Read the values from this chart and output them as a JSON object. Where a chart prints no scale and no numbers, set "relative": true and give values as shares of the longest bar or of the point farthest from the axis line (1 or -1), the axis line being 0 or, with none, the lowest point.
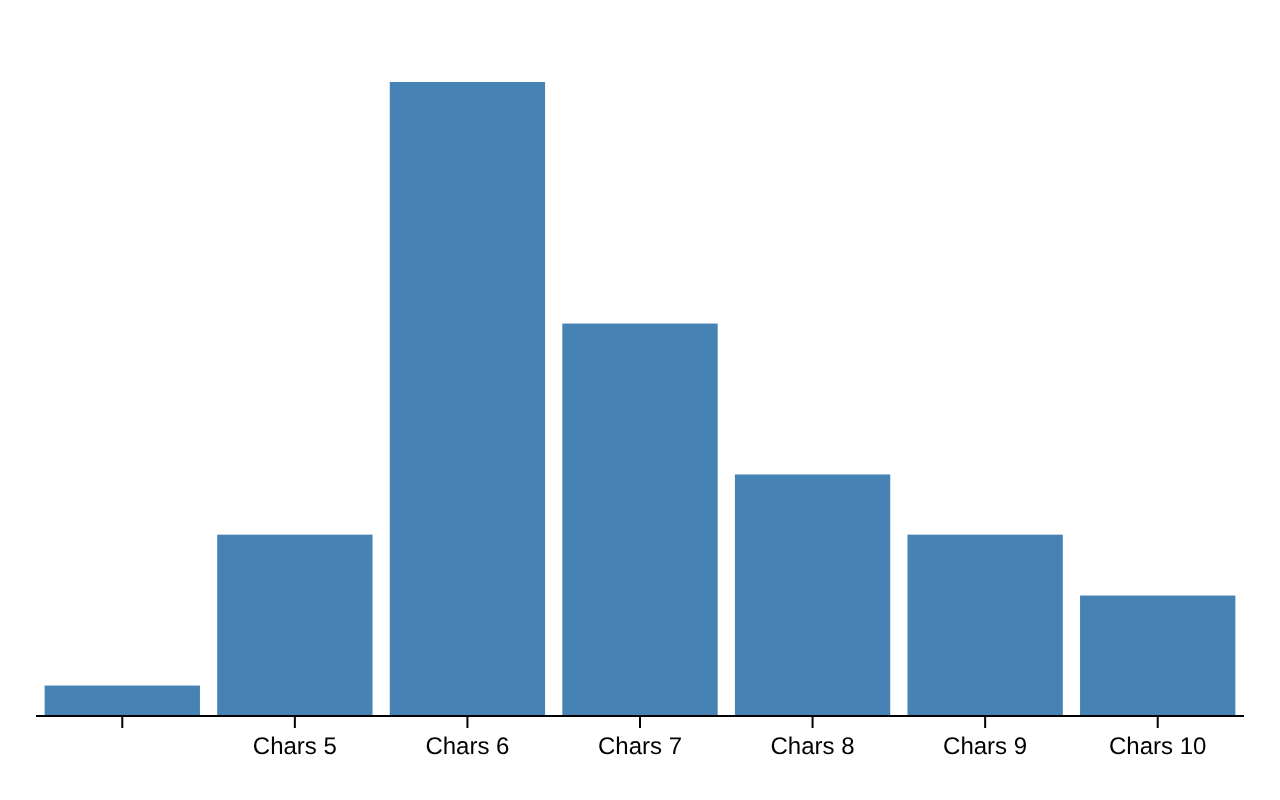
{
  "chart_data": {
    "type": "bar",
    "relative": true,
    "categories": [
      null,
      "Chars 5",
      "Chars 6",
      "Chars 7",
      "Chars 8",
      "Chars 9",
      "Chars 10"
    ],
    "values": [
      0.048,
      0.286,
      1,
      0.619,
      0.381,
      0.286,
      0.19
    ],
    "color": "#4682b4"
  }
}
